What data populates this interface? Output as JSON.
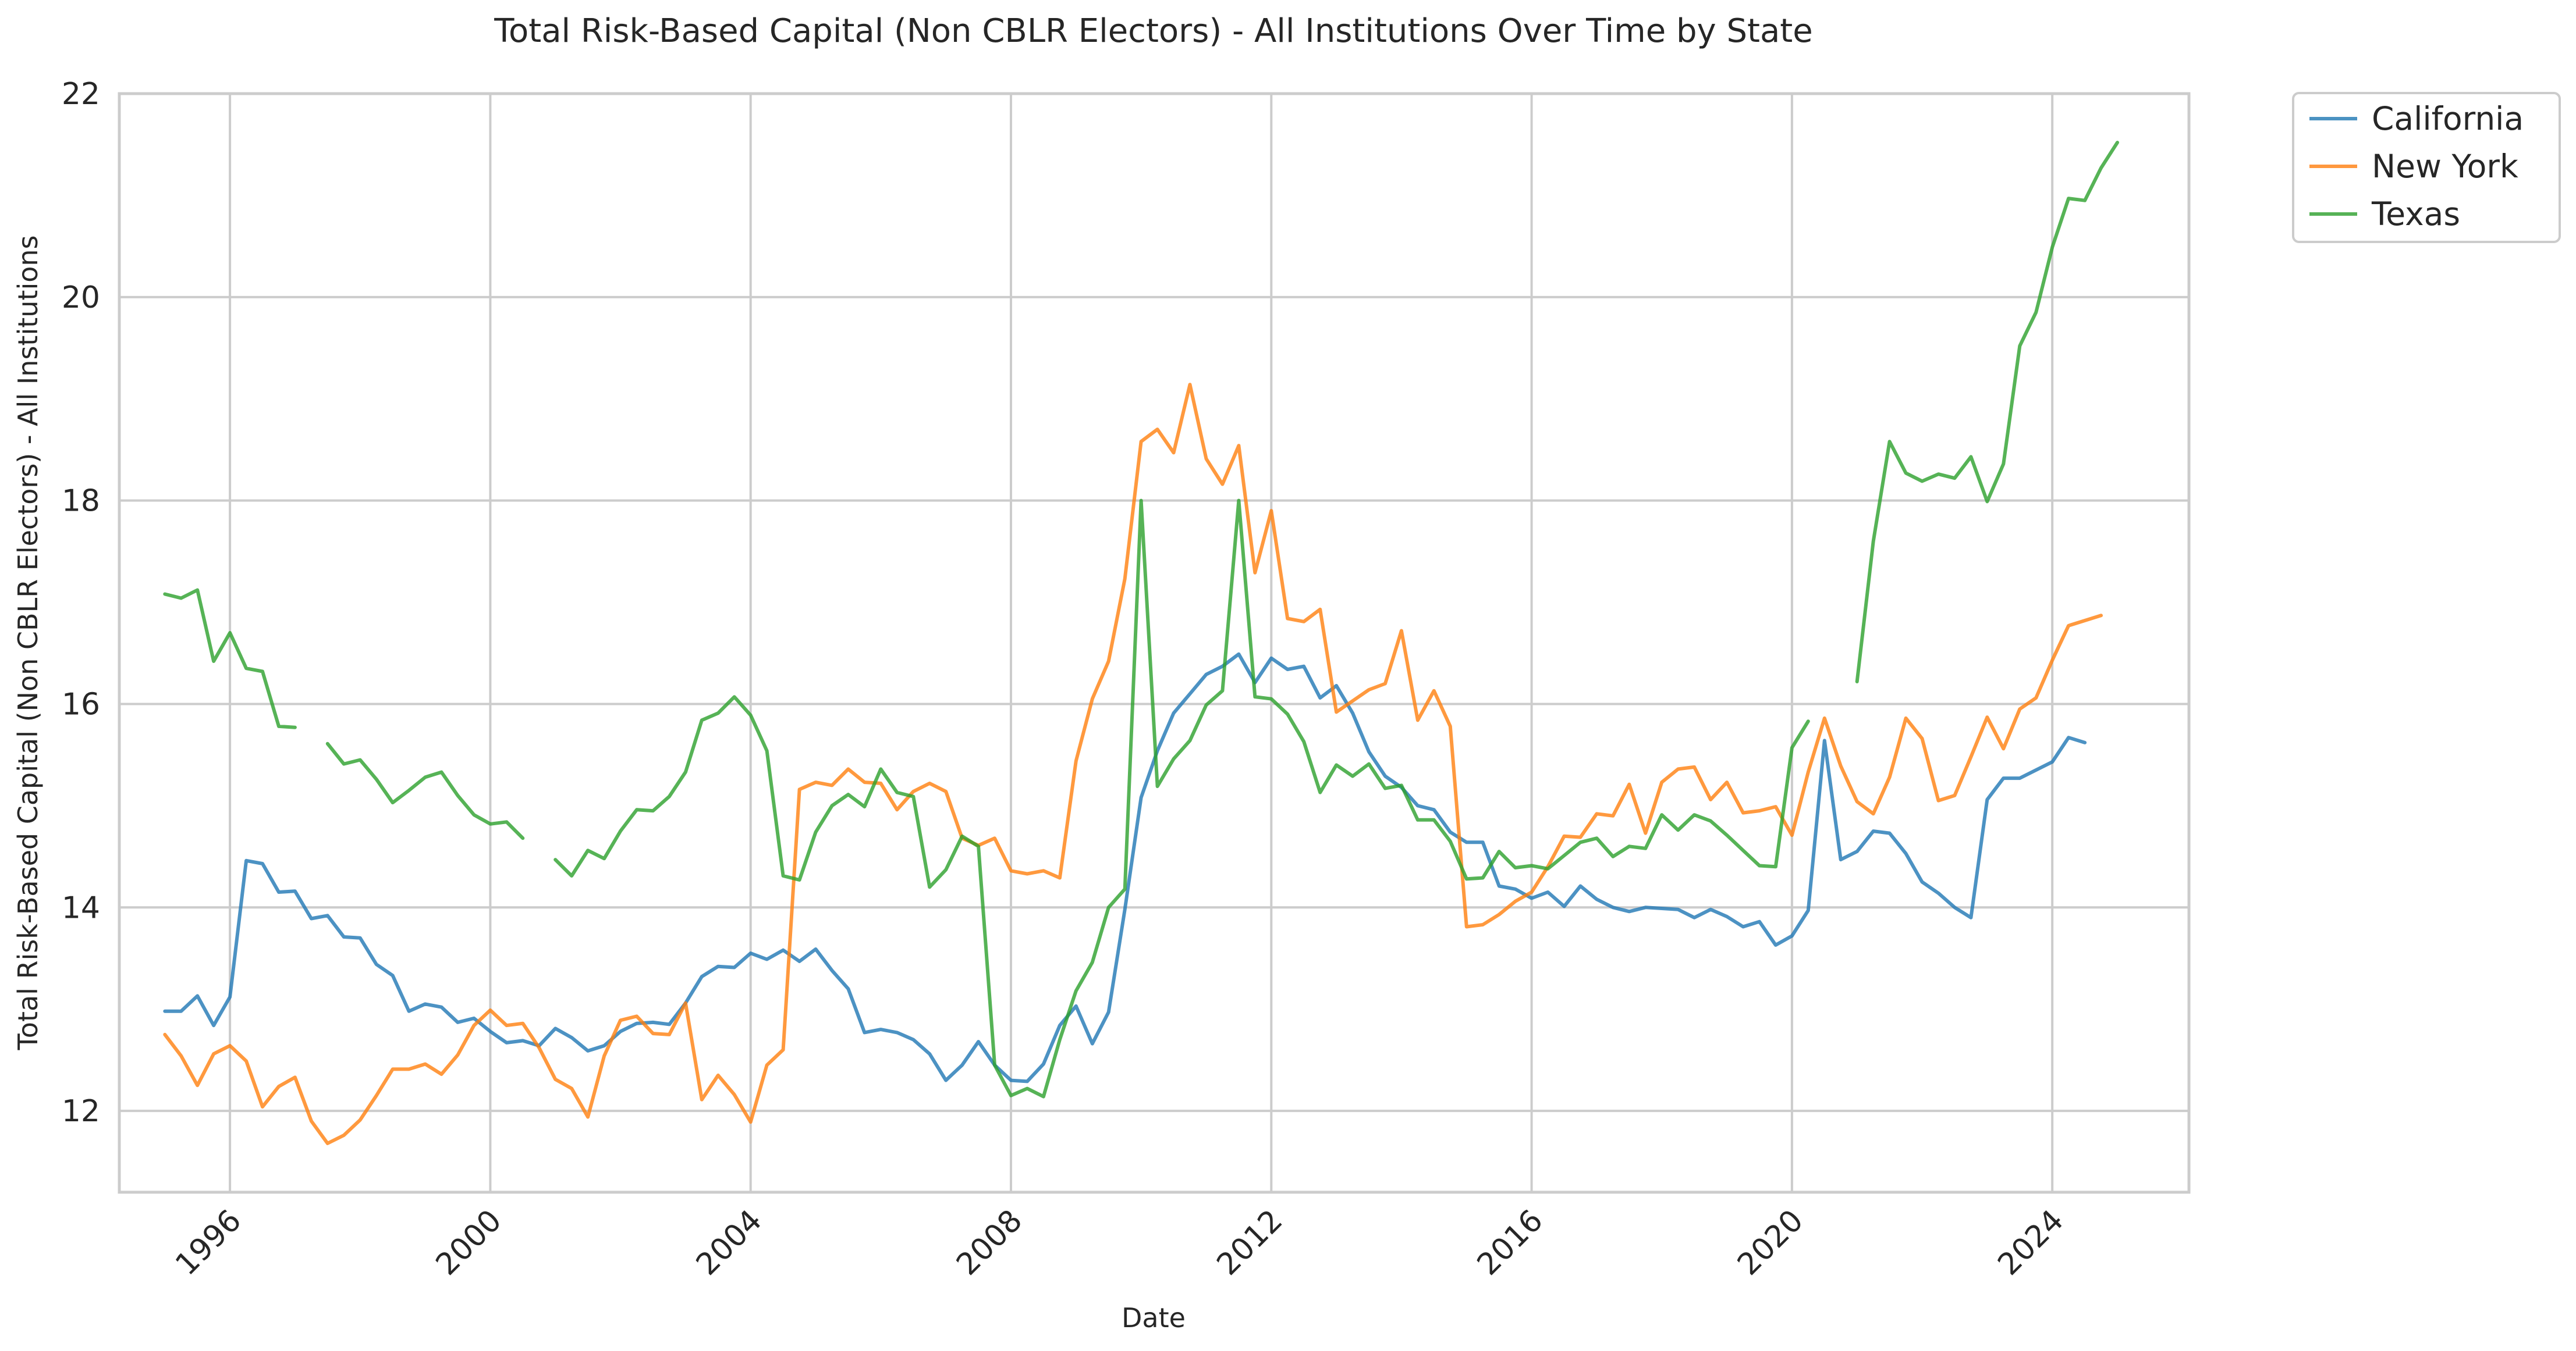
{
  "chart_data": {
    "type": "line",
    "title": "Total Risk-Based Capital (Non CBLR Electors) - All Institutions Over Time by State",
    "xlabel": "Date",
    "ylabel": "Total Risk-Based Capital (Non CBLR Electors) - All Institutions",
    "xlim": [
      1994.3,
      2026.1
    ],
    "ylim": [
      11.2,
      22.0
    ],
    "x_ticks": [
      1996,
      2000,
      2004,
      2008,
      2012,
      2016,
      2020,
      2024
    ],
    "x_tick_labels": [
      "1996",
      "2000",
      "2004",
      "2008",
      "2012",
      "2016",
      "2020",
      "2024"
    ],
    "y_ticks": [
      12,
      14,
      16,
      18,
      20,
      22
    ],
    "y_tick_labels": [
      "12",
      "14",
      "16",
      "18",
      "20",
      "22"
    ],
    "grid": true,
    "legend_position": "outside-top-right",
    "start_year": 1995.0,
    "step_years": 0.25,
    "series": [
      {
        "name": "California",
        "color": "#1f77b4",
        "values": [
          12.98,
          12.98,
          13.13,
          12.84,
          13.12,
          14.46,
          14.43,
          14.15,
          14.16,
          13.89,
          13.92,
          13.71,
          13.7,
          13.44,
          13.33,
          12.98,
          13.05,
          13.02,
          12.87,
          12.91,
          12.78,
          12.67,
          12.69,
          12.64,
          12.81,
          12.72,
          12.59,
          12.64,
          12.78,
          12.86,
          12.87,
          12.85,
          13.06,
          13.32,
          13.42,
          13.41,
          13.55,
          13.49,
          13.58,
          13.47,
          13.59,
          13.38,
          13.2,
          12.77,
          12.8,
          12.77,
          12.7,
          12.56,
          12.3,
          12.45,
          12.68,
          12.45,
          12.3,
          12.29,
          12.46,
          12.84,
          13.03,
          12.66,
          12.97,
          13.98,
          15.08,
          15.54,
          15.91,
          16.1,
          16.29,
          16.37,
          16.49,
          16.21,
          16.45,
          16.34,
          16.37,
          16.06,
          16.18,
          15.91,
          15.53,
          15.29,
          15.18,
          15.0,
          14.96,
          14.74,
          14.64,
          14.64,
          14.21,
          14.18,
          14.09,
          14.15,
          14.01,
          14.21,
          14.08,
          14.0,
          13.96,
          14.0,
          13.99,
          13.98,
          13.9,
          13.98,
          13.91,
          13.81,
          13.86,
          13.63,
          13.72,
          13.97,
          15.64,
          14.47,
          14.55,
          14.75,
          14.73,
          14.53,
          14.25,
          14.14,
          14.0,
          13.9,
          15.06,
          15.27,
          15.27,
          15.35,
          15.43,
          15.67,
          15.62
        ]
      },
      {
        "name": "New York",
        "color": "#ff7f0e",
        "values": [
          12.75,
          12.54,
          12.25,
          12.56,
          12.64,
          12.49,
          12.04,
          12.24,
          12.33,
          11.9,
          11.68,
          11.76,
          11.91,
          12.15,
          12.41,
          12.41,
          12.46,
          12.36,
          12.55,
          12.84,
          12.99,
          12.84,
          12.86,
          12.62,
          12.31,
          12.22,
          11.94,
          12.54,
          12.89,
          12.93,
          12.76,
          12.75,
          13.06,
          12.11,
          12.35,
          12.16,
          11.89,
          12.45,
          12.6,
          15.16,
          15.23,
          15.2,
          15.36,
          15.23,
          15.22,
          14.96,
          15.14,
          15.22,
          15.14,
          14.68,
          14.61,
          14.68,
          14.36,
          14.33,
          14.36,
          14.29,
          15.44,
          16.05,
          16.42,
          17.23,
          18.58,
          18.7,
          18.47,
          19.14,
          18.41,
          18.16,
          18.54,
          17.29,
          17.9,
          16.84,
          16.81,
          16.93,
          15.92,
          16.03,
          16.14,
          16.2,
          16.72,
          15.84,
          16.13,
          15.78,
          13.81,
          13.83,
          13.93,
          14.06,
          14.15,
          14.4,
          14.7,
          14.69,
          14.92,
          14.9,
          15.21,
          14.73,
          15.23,
          15.36,
          15.38,
          15.06,
          15.23,
          14.93,
          14.95,
          14.99,
          14.71,
          15.33,
          15.86,
          15.39,
          15.04,
          14.92,
          15.28,
          15.86,
          15.66,
          15.05,
          15.1,
          15.48,
          15.87,
          15.56,
          15.95,
          16.06,
          16.43,
          16.77,
          16.82,
          16.87
        ]
      },
      {
        "name": "Texas",
        "color": "#2ca02c",
        "values": [
          17.08,
          17.04,
          17.12,
          16.42,
          16.7,
          16.35,
          16.32,
          15.78,
          15.77,
          null,
          15.61,
          15.41,
          15.45,
          15.26,
          15.03,
          15.15,
          15.28,
          15.33,
          15.1,
          14.91,
          14.82,
          14.84,
          14.68,
          null,
          14.47,
          14.31,
          14.56,
          14.48,
          14.75,
          14.96,
          14.95,
          15.09,
          15.33,
          15.84,
          15.91,
          16.07,
          15.89,
          15.54,
          14.31,
          14.27,
          14.74,
          15.0,
          15.11,
          14.99,
          15.36,
          15.13,
          15.09,
          14.2,
          14.37,
          14.7,
          14.6,
          12.45,
          12.15,
          12.22,
          12.14,
          12.7,
          13.18,
          13.46,
          14.0,
          14.18,
          18.0,
          15.19,
          15.46,
          15.64,
          15.99,
          16.13,
          18.0,
          16.07,
          16.05,
          15.9,
          15.63,
          15.13,
          15.4,
          15.29,
          15.41,
          15.17,
          15.2,
          14.86,
          14.86,
          14.65,
          14.28,
          14.29,
          14.55,
          14.39,
          14.41,
          14.38,
          14.51,
          14.64,
          14.68,
          14.5,
          14.6,
          14.58,
          14.91,
          14.76,
          14.91,
          14.85,
          14.71,
          14.56,
          14.41,
          14.4,
          15.57,
          15.83,
          null,
          null,
          16.22,
          17.6,
          18.58,
          18.27,
          18.19,
          18.26,
          18.22,
          18.43,
          17.99,
          18.36,
          19.52,
          19.85,
          20.49,
          20.97,
          20.95,
          21.27,
          21.52
        ]
      }
    ]
  }
}
